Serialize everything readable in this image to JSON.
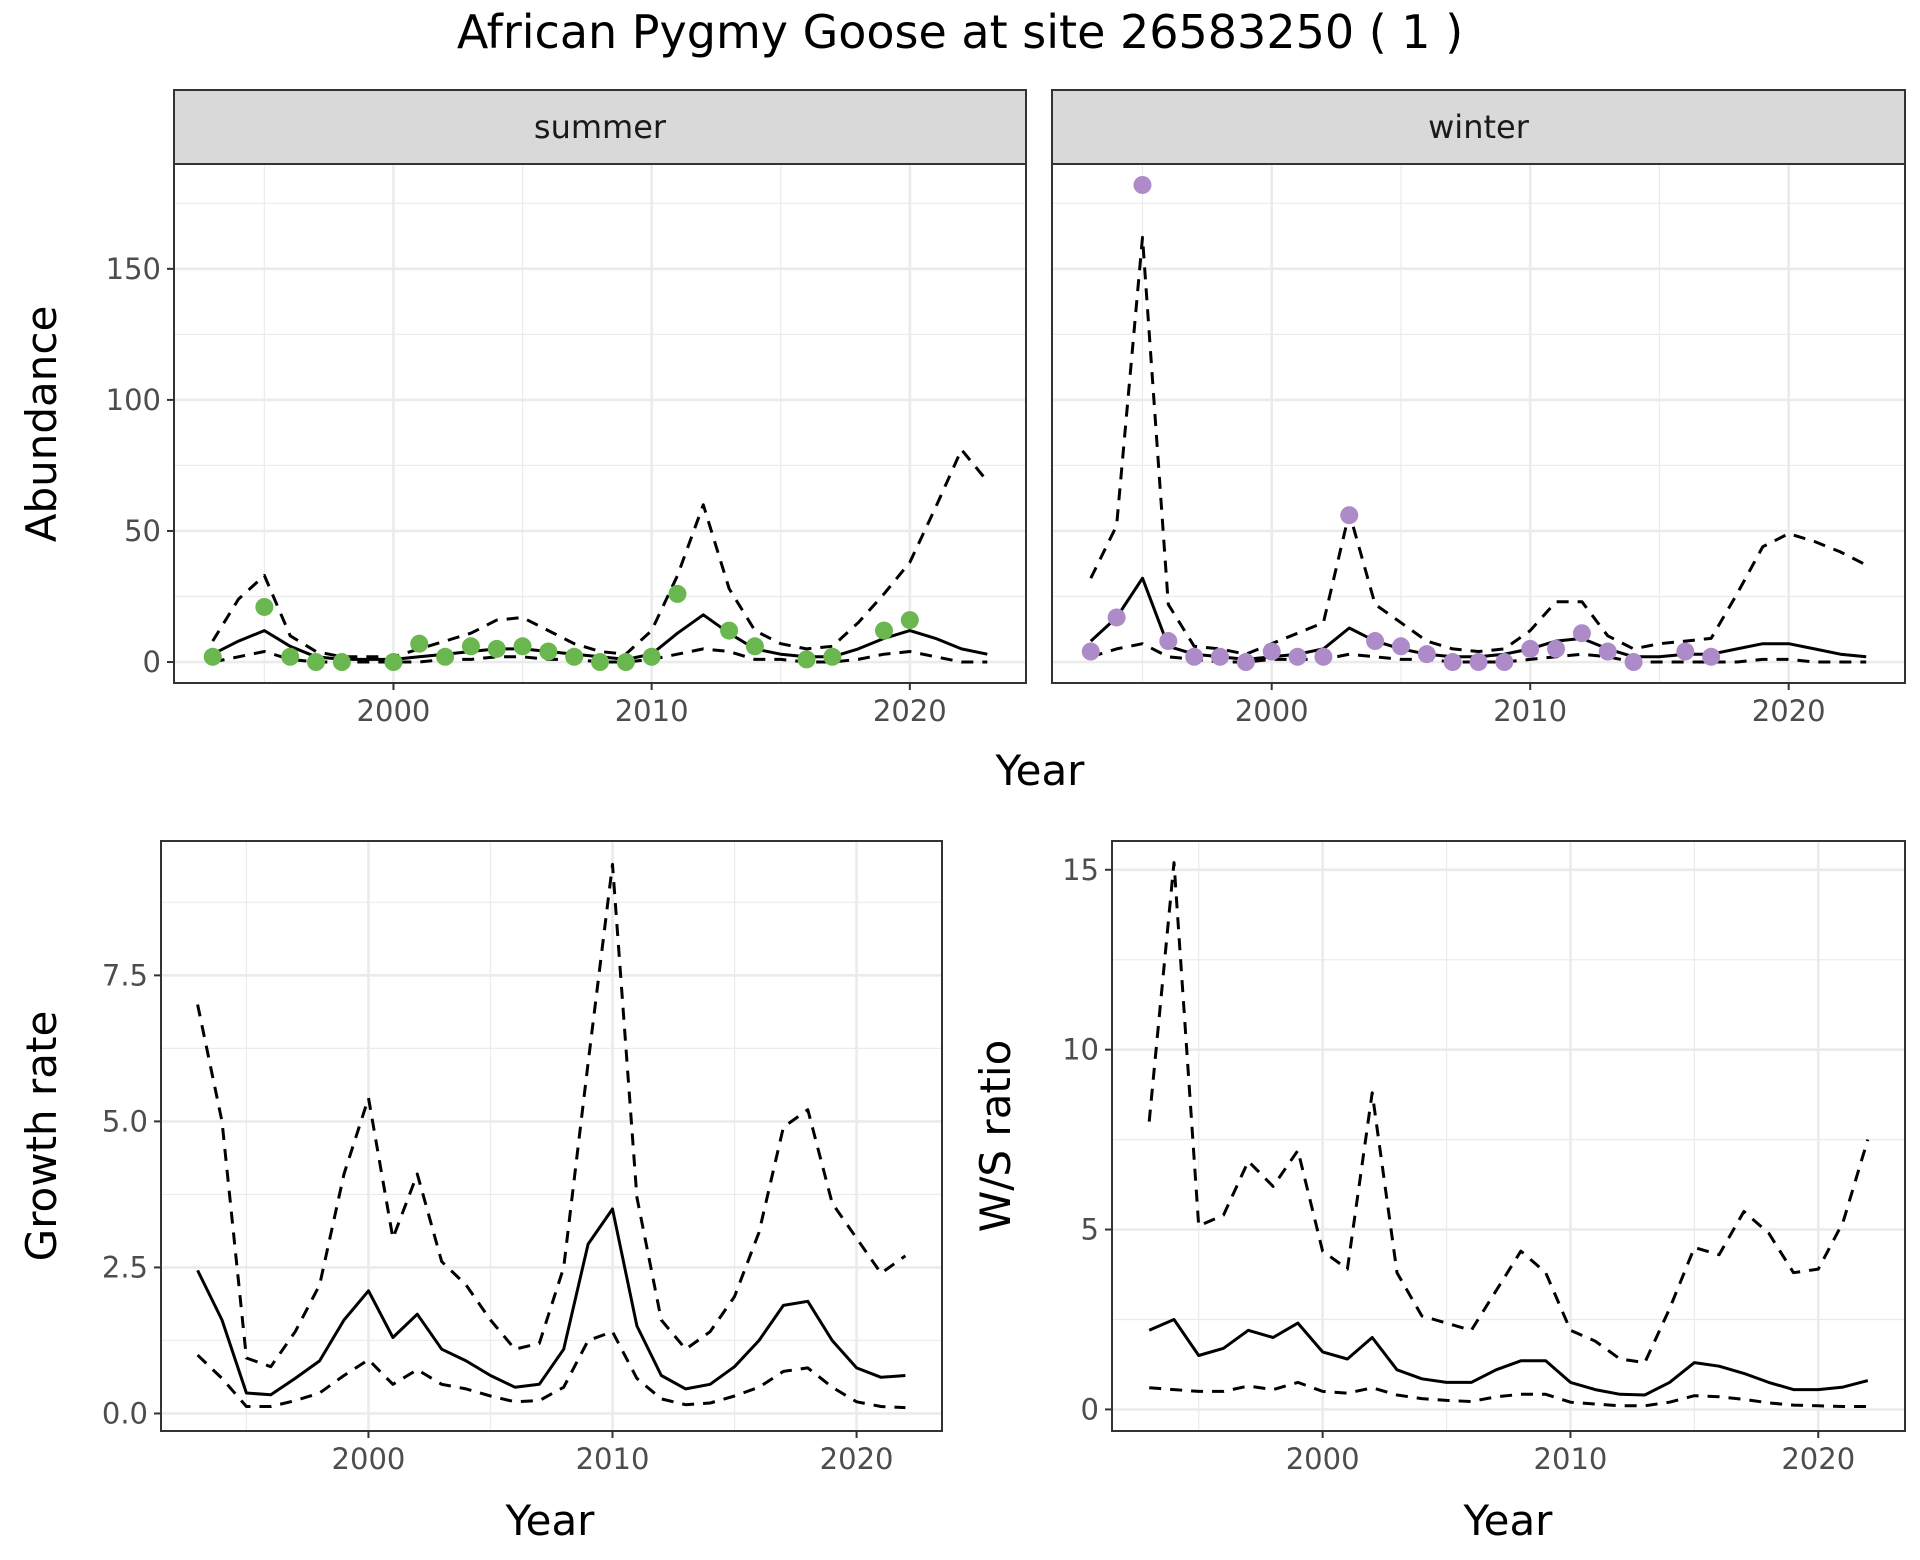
{
  "title": "African Pygmy Goose at site 26583250 ( 1 )",
  "colors": {
    "summer_points": "#6ab64f",
    "winter_points": "#ad8bc8",
    "lines": "#000000",
    "strip_bg": "#d9d9d9",
    "grid": "#ebebeb"
  },
  "chart_data": [
    {
      "id": "abundance",
      "type": "line",
      "facets": [
        "summer",
        "winter"
      ],
      "ylabel": "Abundance",
      "xlabel": "Year",
      "xlim": [
        1991.5,
        2024.5
      ],
      "ylim": [
        -8,
        190
      ],
      "x_ticks": [
        2000,
        2010,
        2020
      ],
      "y_ticks": [
        0,
        50,
        100,
        150
      ],
      "grid": true,
      "panels": [
        {
          "facet": "summer",
          "x": [
            1993,
            1994,
            1995,
            1996,
            1997,
            1998,
            1999,
            2000,
            2001,
            2002,
            2003,
            2004,
            2005,
            2006,
            2007,
            2008,
            2009,
            2010,
            2011,
            2012,
            2013,
            2014,
            2015,
            2016,
            2017,
            2018,
            2019,
            2020,
            2021,
            2022,
            2023
          ],
          "series": [
            {
              "style": "solid",
              "values": [
                3,
                8,
                12,
                6,
                2,
                1,
                1,
                1,
                2,
                3,
                4,
                5,
                5,
                4,
                3,
                2,
                1,
                3,
                11,
                18,
                11,
                5,
                3,
                2,
                2,
                5,
                9,
                12,
                9,
                5,
                3
              ]
            },
            {
              "style": "dashed",
              "values": [
                8,
                24,
                33,
                10,
                4,
                2,
                2,
                2,
                5,
                8,
                11,
                16,
                17,
                12,
                7,
                4,
                3,
                12,
                33,
                60,
                28,
                12,
                7,
                5,
                6,
                15,
                26,
                38,
                59,
                81,
                69
              ]
            },
            {
              "style": "dashed",
              "values": [
                0,
                2,
                4,
                1,
                0,
                0,
                0,
                0,
                0,
                1,
                1,
                2,
                2,
                1,
                1,
                0,
                0,
                1,
                3,
                5,
                4,
                1,
                1,
                0,
                0,
                1,
                3,
                4,
                2,
                0,
                0
              ]
            }
          ],
          "points": {
            "x": [
              1993,
              1995,
              1996,
              1997,
              1998,
              2000,
              2001,
              2002,
              2003,
              2004,
              2005,
              2006,
              2007,
              2008,
              2009,
              2010,
              2011,
              2013,
              2014,
              2016,
              2017,
              2019,
              2020
            ],
            "y": [
              2,
              21,
              2,
              0,
              0,
              0,
              7,
              2,
              6,
              5,
              6,
              4,
              2,
              0,
              0,
              2,
              26,
              12,
              6,
              1,
              2,
              12,
              16
            ]
          }
        },
        {
          "facet": "winter",
          "x": [
            1993,
            1994,
            1995,
            1996,
            1997,
            1998,
            1999,
            2000,
            2001,
            2002,
            2003,
            2004,
            2005,
            2006,
            2007,
            2008,
            2009,
            2010,
            2011,
            2012,
            2013,
            2014,
            2015,
            2016,
            2017,
            2018,
            2019,
            2020,
            2021,
            2022,
            2023
          ],
          "series": [
            {
              "style": "solid",
              "values": [
                8,
                17,
                32,
                6,
                3,
                2,
                1,
                2,
                3,
                5,
                13,
                8,
                5,
                3,
                2,
                2,
                3,
                5,
                8,
                9,
                5,
                2,
                2,
                3,
                3,
                5,
                7,
                7,
                5,
                3,
                2
              ]
            },
            {
              "style": "dashed",
              "values": [
                32,
                52,
                162,
                22,
                6,
                5,
                3,
                7,
                11,
                15,
                57,
                22,
                15,
                8,
                5,
                4,
                5,
                12,
                23,
                23,
                10,
                5,
                7,
                8,
                9,
                26,
                44,
                49,
                46,
                42,
                37
              ]
            },
            {
              "style": "dashed",
              "values": [
                2,
                5,
                7,
                2,
                1,
                0,
                0,
                1,
                1,
                1,
                3,
                2,
                1,
                1,
                0,
                0,
                0,
                1,
                2,
                3,
                2,
                0,
                0,
                0,
                0,
                0,
                1,
                1,
                0,
                0,
                0
              ]
            }
          ],
          "points": {
            "x": [
              1993,
              1994,
              1995,
              1996,
              1997,
              1998,
              1999,
              2000,
              2001,
              2002,
              2003,
              2004,
              2005,
              2006,
              2007,
              2008,
              2009,
              2010,
              2011,
              2012,
              2013,
              2014,
              2016,
              2017
            ],
            "y": [
              4,
              17,
              182,
              8,
              2,
              2,
              0,
              4,
              2,
              2,
              56,
              8,
              6,
              3,
              0,
              0,
              0,
              5,
              5,
              11,
              4,
              0,
              4,
              2
            ]
          }
        }
      ]
    },
    {
      "id": "growth",
      "type": "line",
      "ylabel": "Growth rate",
      "xlabel": "Year",
      "xlim": [
        1991.5,
        2023.5
      ],
      "ylim": [
        -0.3,
        9.8
      ],
      "x_ticks": [
        2000,
        2010,
        2020
      ],
      "y_ticks": [
        0.0,
        2.5,
        5.0,
        7.5
      ],
      "y_tick_labels": [
        "0.0",
        "2.5",
        "5.0",
        "7.5"
      ],
      "grid": true,
      "x": [
        1993,
        1994,
        1995,
        1996,
        1997,
        1998,
        1999,
        2000,
        2001,
        2002,
        2003,
        2004,
        2005,
        2006,
        2007,
        2008,
        2009,
        2010,
        2011,
        2012,
        2013,
        2014,
        2015,
        2016,
        2017,
        2018,
        2019,
        2020,
        2021,
        2022
      ],
      "series": [
        {
          "style": "solid",
          "values": [
            2.45,
            1.6,
            0.35,
            0.32,
            0.6,
            0.9,
            1.6,
            2.1,
            1.3,
            1.7,
            1.1,
            0.9,
            0.65,
            0.45,
            0.5,
            1.1,
            2.9,
            3.5,
            1.5,
            0.65,
            0.42,
            0.5,
            0.8,
            1.25,
            1.85,
            1.92,
            1.25,
            0.78,
            0.62,
            0.65
          ]
        },
        {
          "style": "dashed",
          "values": [
            7.0,
            5.0,
            0.95,
            0.8,
            1.4,
            2.2,
            4.1,
            5.4,
            3.0,
            4.1,
            2.6,
            2.2,
            1.6,
            1.1,
            1.2,
            2.5,
            6.0,
            9.4,
            3.7,
            1.6,
            1.1,
            1.4,
            2.0,
            3.1,
            4.9,
            5.2,
            3.6,
            3.0,
            2.4,
            2.7
          ]
        },
        {
          "style": "dashed",
          "values": [
            1.0,
            0.6,
            0.12,
            0.12,
            0.22,
            0.35,
            0.65,
            0.92,
            0.5,
            0.75,
            0.5,
            0.42,
            0.3,
            0.2,
            0.22,
            0.45,
            1.25,
            1.4,
            0.6,
            0.25,
            0.15,
            0.18,
            0.3,
            0.45,
            0.72,
            0.78,
            0.45,
            0.2,
            0.12,
            0.1
          ]
        }
      ]
    },
    {
      "id": "ws_ratio",
      "type": "line",
      "ylabel": "W/S ratio",
      "xlabel": "Year",
      "xlim": [
        1991.5,
        2023.5
      ],
      "ylim": [
        -0.6,
        15.8
      ],
      "x_ticks": [
        2000,
        2010,
        2020
      ],
      "y_ticks": [
        0,
        5,
        10,
        15
      ],
      "grid": true,
      "x": [
        1993,
        1994,
        1995,
        1996,
        1997,
        1998,
        1999,
        2000,
        2001,
        2002,
        2003,
        2004,
        2005,
        2006,
        2007,
        2008,
        2009,
        2010,
        2011,
        2012,
        2013,
        2014,
        2015,
        2016,
        2017,
        2018,
        2019,
        2020,
        2021,
        2022
      ],
      "series": [
        {
          "style": "solid",
          "values": [
            2.2,
            2.5,
            1.5,
            1.7,
            2.2,
            2.0,
            2.4,
            1.6,
            1.4,
            2.0,
            1.1,
            0.85,
            0.75,
            0.75,
            1.1,
            1.35,
            1.35,
            0.75,
            0.55,
            0.42,
            0.4,
            0.75,
            1.3,
            1.2,
            1.0,
            0.75,
            0.55,
            0.55,
            0.62,
            0.8
          ]
        },
        {
          "style": "dashed",
          "values": [
            8.0,
            15.2,
            5.1,
            5.4,
            6.9,
            6.2,
            7.2,
            4.4,
            3.9,
            8.8,
            3.8,
            2.6,
            2.4,
            2.2,
            3.3,
            4.4,
            3.8,
            2.2,
            1.9,
            1.4,
            1.3,
            2.8,
            4.5,
            4.3,
            5.5,
            4.9,
            3.8,
            3.9,
            5.2,
            7.5
          ]
        },
        {
          "style": "dashed",
          "values": [
            0.6,
            0.55,
            0.5,
            0.5,
            0.65,
            0.55,
            0.75,
            0.5,
            0.45,
            0.6,
            0.4,
            0.3,
            0.25,
            0.22,
            0.35,
            0.42,
            0.42,
            0.2,
            0.15,
            0.1,
            0.1,
            0.2,
            0.38,
            0.35,
            0.28,
            0.18,
            0.12,
            0.1,
            0.08,
            0.08
          ]
        }
      ]
    }
  ]
}
